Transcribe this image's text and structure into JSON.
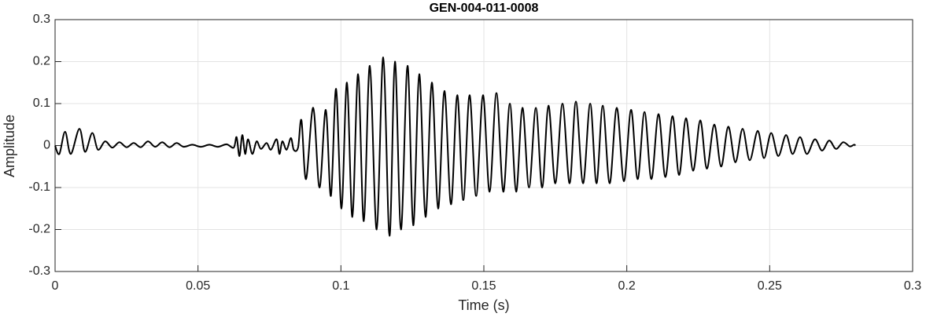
{
  "chart_data": {
    "type": "line",
    "title": "GEN-004-011-0008",
    "x_label": "Time (s)",
    "y_label": "Amplitude",
    "xlim": [
      0,
      0.3
    ],
    "ylim": [
      -0.3,
      0.3
    ],
    "xticks": [
      0,
      0.05,
      0.1,
      0.15,
      0.2,
      0.25,
      0.3
    ],
    "yticks": [
      -0.3,
      -0.2,
      -0.1,
      0,
      0.1,
      0.2,
      0.3
    ],
    "grid": true,
    "series": [
      {
        "color": "#000000",
        "x": [
          0,
          0.0015,
          0.0035,
          0.0055,
          0.0085,
          0.0105,
          0.013,
          0.015,
          0.0175,
          0.02,
          0.0225,
          0.025,
          0.0275,
          0.03,
          0.0325,
          0.035,
          0.0375,
          0.04,
          0.0425,
          0.045,
          0.048,
          0.051,
          0.054,
          0.057,
          0.06,
          0.0625,
          0.0635,
          0.0645,
          0.0655,
          0.0665,
          0.0675,
          0.069,
          0.0705,
          0.072,
          0.074,
          0.0755,
          0.0775,
          0.0785,
          0.0795,
          0.081,
          0.0825,
          0.0835,
          0.085,
          0.0862,
          0.0878,
          0.0903,
          0.0925,
          0.0947,
          0.0965,
          0.0983,
          0.1002,
          0.1021,
          0.104,
          0.106,
          0.108,
          0.1101,
          0.1125,
          0.1148,
          0.117,
          0.1189,
          0.121,
          0.1233,
          0.1253,
          0.1274,
          0.1296,
          0.1318,
          0.134,
          0.1362,
          0.1385,
          0.1407,
          0.1428,
          0.145,
          0.1473,
          0.1497,
          0.152,
          0.1544,
          0.1568,
          0.1591,
          0.1613,
          0.1635,
          0.1658,
          0.1682,
          0.1704,
          0.1726,
          0.175,
          0.1775,
          0.18,
          0.1822,
          0.1847,
          0.1872,
          0.1894,
          0.1916,
          0.194,
          0.1965,
          0.199,
          0.2015,
          0.2038,
          0.2062,
          0.2086,
          0.2111,
          0.2135,
          0.216,
          0.2183,
          0.2207,
          0.2232,
          0.2257,
          0.228,
          0.2306,
          0.233,
          0.2355,
          0.238,
          0.2405,
          0.243,
          0.2458,
          0.248,
          0.2505,
          0.253,
          0.2557,
          0.258,
          0.2606,
          0.263,
          0.2658,
          0.2683,
          0.2708,
          0.2732,
          0.2757,
          0.278,
          0.2795,
          0.28
        ],
        "values": [
          0,
          -0.02,
          0.033,
          -0.02,
          0.04,
          -0.015,
          0.03,
          -0.01,
          0.01,
          -0.005,
          0.008,
          -0.004,
          0.006,
          -0.004,
          0.01,
          -0.003,
          0.008,
          -0.004,
          0.006,
          -0.003,
          0.002,
          -0.003,
          0.002,
          -0.003,
          0.003,
          -0.005,
          0.02,
          -0.025,
          0.025,
          -0.02,
          0.015,
          -0.02,
          0.01,
          -0.008,
          0.006,
          -0.01,
          0.015,
          -0.02,
          0.01,
          -0.01,
          0.018,
          -0.01,
          -0.005,
          0.06,
          -0.08,
          0.09,
          -0.1,
          0.085,
          -0.12,
          0.135,
          -0.15,
          0.15,
          -0.17,
          0.17,
          -0.18,
          0.19,
          -0.2,
          0.21,
          -0.215,
          0.2,
          -0.2,
          0.19,
          -0.19,
          0.17,
          -0.17,
          0.15,
          -0.15,
          0.13,
          -0.14,
          0.12,
          -0.13,
          0.12,
          -0.12,
          0.12,
          -0.11,
          0.125,
          -0.11,
          0.1,
          -0.11,
          0.09,
          -0.1,
          0.09,
          -0.1,
          0.095,
          -0.09,
          0.1,
          -0.09,
          0.105,
          -0.09,
          0.1,
          -0.09,
          0.095,
          -0.09,
          0.09,
          -0.085,
          0.085,
          -0.08,
          0.08,
          -0.08,
          0.075,
          -0.075,
          0.07,
          -0.07,
          0.065,
          -0.06,
          0.06,
          -0.055,
          0.05,
          -0.05,
          0.045,
          -0.04,
          0.04,
          -0.035,
          0.035,
          -0.03,
          0.03,
          -0.025,
          0.025,
          -0.02,
          0.02,
          -0.02,
          0.015,
          -0.012,
          0.012,
          -0.008,
          0.008,
          -0.002,
          0.002,
          0
        ]
      }
    ]
  }
}
